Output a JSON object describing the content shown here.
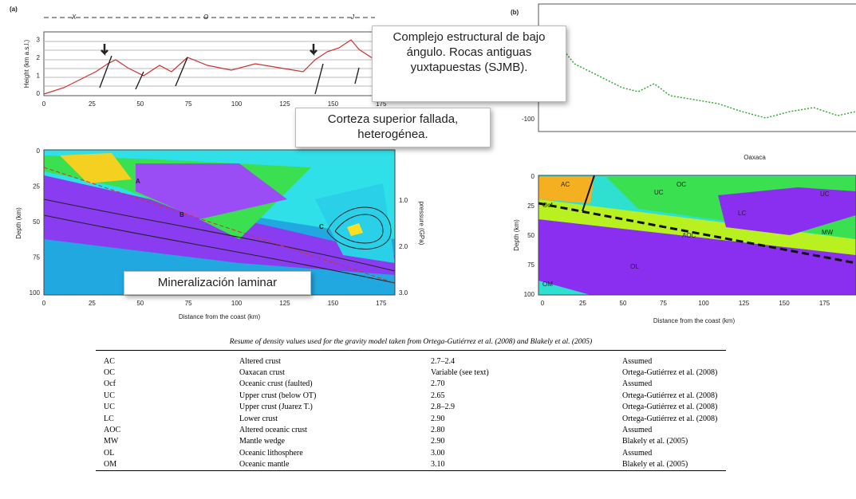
{
  "panel_a": {
    "label": "(a)",
    "segments": [
      "X",
      "O",
      "J"
    ],
    "profile": {
      "y_label": "Height (km a.s.l.)",
      "y_ticks": [
        "0",
        "1",
        "2",
        "3"
      ],
      "x_ticks": [
        "0",
        "25",
        "50",
        "75",
        "100",
        "125",
        "150",
        "175"
      ]
    },
    "section": {
      "y_label": "Depth (km)",
      "y_ticks": [
        "0",
        "25",
        "50",
        "75",
        "100"
      ],
      "y2_label": "pressure (GPa)",
      "y2_ticks": [
        "1.0",
        "2.0",
        "3.0"
      ],
      "x_ticks": [
        "0",
        "25",
        "50",
        "75",
        "100",
        "125",
        "150",
        "175"
      ],
      "x_label": "Distance from the coast (km)",
      "regions": [
        "A",
        "B",
        "C"
      ]
    }
  },
  "callouts": [
    "Complejo estructural de bajo ángulo. Rocas antiguas yuxtapuestas (SJMB).",
    "Corteza superior fallada, heterogénea.",
    "Mineralización laminar"
  ],
  "panel_b": {
    "label": "(b)",
    "profile": {
      "y_ticks": [
        "-100"
      ]
    },
    "section": {
      "y_label": "Depth (km)",
      "y_ticks": [
        "0",
        "25",
        "50",
        "75",
        "100"
      ],
      "x_ticks": [
        "0",
        "25",
        "50",
        "75",
        "100",
        "125",
        "150",
        "175"
      ],
      "x_label": "Distance from the coast (km)",
      "place": "Oaxaca",
      "units": [
        "AC",
        "OC",
        "UC",
        "UC",
        "LC",
        "Ocf",
        "AOC",
        "MW",
        "OL",
        "OM"
      ]
    }
  },
  "table": {
    "caption": "Resume of density values used for the gravity model taken from Ortega-Gutiérrez et al. (2008) and Blakely et al. (2005)",
    "rows": [
      [
        "AC",
        "Altered crust",
        "2.7–2.4",
        "Assumed"
      ],
      [
        "OC",
        "Oaxacan crust",
        "Variable (see text)",
        "Ortega-Gutiérrez et al. (2008)"
      ],
      [
        "Ocf",
        "Oceanic crust (faulted)",
        "2.70",
        "Assumed"
      ],
      [
        "UC",
        "Upper crust (below OT)",
        "2.65",
        "Ortega-Gutiérrez et al. (2008)"
      ],
      [
        "UC",
        "Upper crust (Juarez T.)",
        "2.8–2.9",
        "Ortega-Gutiérrez et al. (2008)"
      ],
      [
        "LC",
        "Lower crust",
        "2.90",
        "Ortega-Gutiérrez et al. (2008)"
      ],
      [
        "AOC",
        "Altered oceanic crust",
        "2.80",
        "Assumed"
      ],
      [
        "MW",
        "Mantle wedge",
        "2.90",
        "Blakely et al. (2005)"
      ],
      [
        "OL",
        "Oceanic lithosphere",
        "3.00",
        "Assumed"
      ],
      [
        "OM",
        "Oceanic mantle",
        "3.10",
        "Blakely et al. (2005)"
      ]
    ]
  }
}
